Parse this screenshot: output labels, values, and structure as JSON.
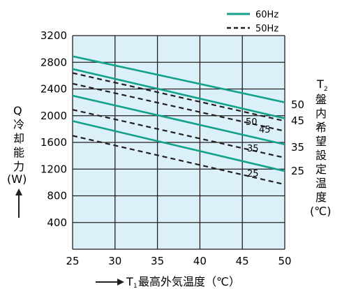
{
  "chart_data": {
    "type": "line",
    "xlabel_prefix": "T",
    "xlabel_sub": "1",
    "xlabel_rest": "最高外気温度（℃）",
    "ylabel_chars": [
      "Q",
      "冷",
      "却",
      "能",
      "力"
    ],
    "ylabel_unit": "(W)",
    "right_label_prefix": "T",
    "right_label_sub": "2",
    "right_label_chars": [
      "盤",
      "内",
      "希",
      "望",
      "設",
      "定",
      "温",
      "度"
    ],
    "right_label_unit": "(℃)",
    "xlim": [
      25,
      50
    ],
    "ylim": [
      0,
      3200
    ],
    "x_ticks": [
      "25",
      "30",
      "35",
      "40",
      "45",
      "50"
    ],
    "y_ticks": [
      "400",
      "800",
      "1200",
      "1600",
      "2000",
      "2400",
      "2800",
      "3200"
    ],
    "grid": true,
    "legend_position": "top-right",
    "legend": [
      {
        "label": "60Hz",
        "style": "solid",
        "color": "#12a289"
      },
      {
        "label": "50Hz",
        "style": "dashed",
        "color": "#231f20"
      }
    ],
    "series": [
      {
        "name": "60Hz",
        "t2": "50",
        "x": [
          25,
          50
        ],
        "y": [
          2890,
          2200
        ]
      },
      {
        "name": "60Hz",
        "t2": "45",
        "x": [
          25,
          50
        ],
        "y": [
          2700,
          1960
        ]
      },
      {
        "name": "60Hz",
        "t2": "35",
        "x": [
          25,
          50
        ],
        "y": [
          2300,
          1570
        ]
      },
      {
        "name": "60Hz",
        "t2": "25",
        "x": [
          25,
          50
        ],
        "y": [
          1920,
          1170
        ]
      },
      {
        "name": "50Hz",
        "t2": "50",
        "x": [
          25,
          50
        ],
        "y": [
          2640,
          1920
        ]
      },
      {
        "name": "50Hz",
        "t2": "45",
        "x": [
          25,
          50
        ],
        "y": [
          2480,
          1770
        ]
      },
      {
        "name": "50Hz",
        "t2": "35",
        "x": [
          25,
          50
        ],
        "y": [
          2090,
          1370
        ]
      },
      {
        "name": "50Hz",
        "t2": "25",
        "x": [
          25,
          50
        ],
        "y": [
          1700,
          970
        ]
      }
    ],
    "right_values": [
      "50",
      "45",
      "35",
      "25"
    ],
    "inline_labels": [
      "50",
      "45",
      "35",
      "25"
    ]
  },
  "colors": {
    "plot_background": "#dcf0fa",
    "grid": "#231f20",
    "line_60hz": "#12a289",
    "line_50hz": "#231f20",
    "text": "#231f20"
  }
}
